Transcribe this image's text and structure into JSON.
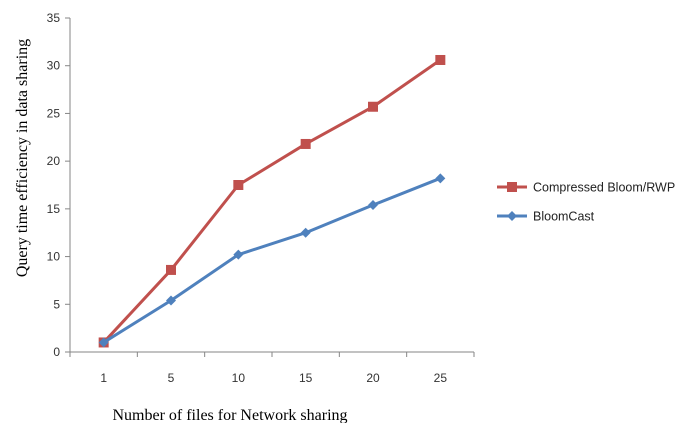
{
  "chart_data": {
    "type": "line",
    "title": "",
    "xlabel": "Number of files for Network sharing",
    "ylabel": "Query time efficiency in data sharing",
    "categories": [
      "1",
      "5",
      "10",
      "15",
      "20",
      "25"
    ],
    "ylim": [
      0,
      35
    ],
    "yticks": [
      0,
      5,
      10,
      15,
      20,
      25,
      30,
      35
    ],
    "grid": false,
    "legend_position": "right",
    "series": [
      {
        "name": "Compressed Bloom/RWP",
        "color": "#C0504D",
        "marker": "square",
        "values": [
          1.0,
          8.6,
          17.5,
          21.8,
          25.7,
          30.6
        ]
      },
      {
        "name": "BloomCast",
        "color": "#4F81BD",
        "marker": "diamond",
        "values": [
          1.0,
          5.4,
          10.2,
          12.5,
          15.4,
          18.2
        ]
      }
    ]
  }
}
